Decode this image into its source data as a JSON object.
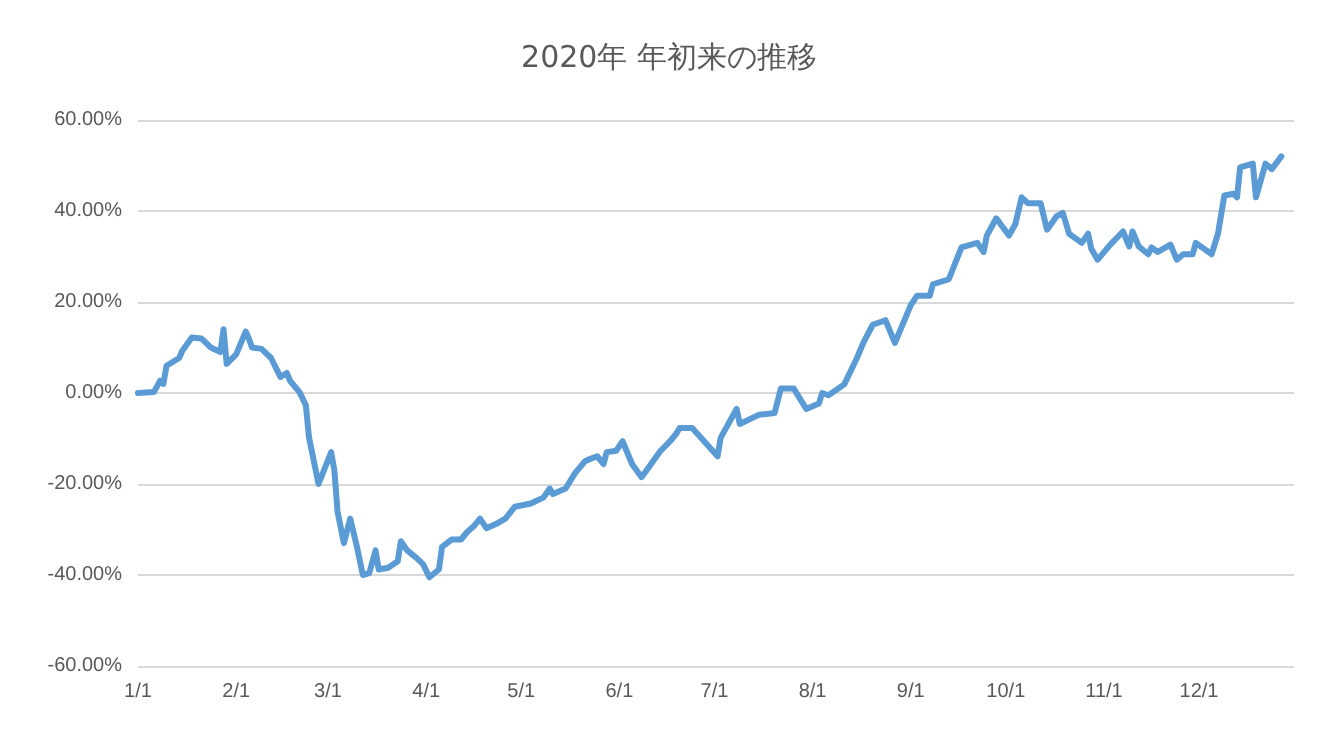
{
  "chart_data": {
    "type": "line",
    "title": "2020年 年初来の推移",
    "x": [
      "--01-01",
      "--01-06",
      "--01-08",
      "--01-09",
      "--01-10",
      "--01-14",
      "--01-15",
      "--01-18",
      "--01-21",
      "--01-24",
      "--01-27",
      "--01-28",
      "--01-29",
      "--02-01",
      "--02-04",
      "--02-05",
      "--02-06",
      "--02-09",
      "--02-12",
      "--02-15",
      "--02-17",
      "--02-18",
      "--02-21",
      "--02-23",
      "--02-24",
      "--02-27",
      "--03-02",
      "--03-03",
      "--03-04",
      "--03-06",
      "--03-08",
      "--03-10",
      "--03-12",
      "--03-14",
      "--03-16",
      "--03-17",
      "--03-20",
      "--03-23",
      "--03-24",
      "--03-26",
      "--03-29",
      "--03-31",
      "--04-02",
      "--04-05",
      "--04-06",
      "--04-09",
      "--04-12",
      "--04-14",
      "--04-16",
      "--04-18",
      "--04-20",
      "--04-23",
      "--04-26",
      "--04-29",
      "--05-04",
      "--05-08",
      "--05-10",
      "--05-11",
      "--05-15",
      "--05-18",
      "--05-21",
      "--05-22",
      "--05-25",
      "--05-27",
      "--05-28",
      "--05-31",
      "--06-02",
      "--06-05",
      "--06-08",
      "--06-11",
      "--06-14",
      "--06-17",
      "--06-19",
      "--06-20",
      "--06-24",
      "--07-02",
      "--07-03",
      "--07-08",
      "--07-09",
      "--07-15",
      "--07-20",
      "--07-22",
      "--07-26",
      "--07-30",
      "--08-03",
      "--08-04",
      "--08-06",
      "--08-11",
      "--08-15",
      "--08-17",
      "--08-20",
      "--08-24",
      "--08-27",
      "--09-01",
      "--09-03",
      "--09-07",
      "--09-08",
      "--09-13",
      "--09-17",
      "--09-22",
      "--09-24",
      "--09-25",
      "--09-28",
      "--10-02",
      "--10-04",
      "--10-06",
      "--10-08",
      "--10-12",
      "--10-14",
      "--10-17",
      "--10-19",
      "--10-21",
      "--10-25",
      "--10-27",
      "--10-28",
      "--10-30",
      "--11-03",
      "--11-07",
      "--11-09",
      "--11-10",
      "--11-12",
      "--11-15",
      "--11-16",
      "--11-18",
      "--11-22",
      "--11-24",
      "--11-26",
      "--11-29",
      "--11-30",
      "--12-05",
      "--12-07",
      "--12-09",
      "--12-12",
      "--12-13",
      "--12-14",
      "--12-18",
      "--12-19",
      "--12-22",
      "--12-24",
      "--12-27"
    ],
    "series": [
      {
        "color": "#5b9bd5",
        "values": [
          0,
          0.2,
          2.7,
          2,
          6,
          7.7,
          9.3,
          12.2,
          12,
          10,
          9,
          14,
          6.4,
          8.5,
          13.5,
          12,
          10,
          9.7,
          7.7,
          3.5,
          4.4,
          2.7,
          0.2,
          -2.7,
          -9.8,
          -20,
          -13,
          -17,
          -26,
          -33,
          -27.6,
          -33.4,
          -40,
          -39.6,
          -34.6,
          -38.8,
          -38.4,
          -37,
          -32.6,
          -34.6,
          -36.3,
          -37.6,
          -40.5,
          -38.8,
          -33.8,
          -32.2,
          -32.2,
          -30.5,
          -29.3,
          -27.6,
          -29.7,
          -28.8,
          -27.6,
          -25,
          -24.3,
          -23,
          -21,
          -22.2,
          -21,
          -17.6,
          -15.1,
          -14.7,
          -13.9,
          -15.6,
          -13,
          -12.7,
          -10.6,
          -15.6,
          -18.5,
          -15.6,
          -12.7,
          -10.6,
          -8.9,
          -7.7,
          -7.7,
          -13.9,
          -9.8,
          -3.5,
          -6.8,
          -4.8,
          -4.4,
          1,
          1,
          -3.5,
          -2.3,
          0,
          -0.5,
          1.9,
          7.7,
          11,
          15,
          16,
          11,
          19.3,
          21.4,
          21.4,
          23.9,
          25,
          32,
          33,
          31,
          34.6,
          38.4,
          34.6,
          37.1,
          43,
          41.7,
          41.7,
          35.9,
          38.8,
          39.6,
          35,
          33,
          35,
          31.7,
          29.3,
          32.6,
          35.5,
          32.2,
          35.5,
          32.2,
          30.5,
          32,
          31,
          32.6,
          29.3,
          30.5,
          30.5,
          33,
          30.5,
          35,
          43.4,
          43.8,
          43,
          49.6,
          50.4,
          43,
          50.4,
          49.2,
          52
        ]
      }
    ],
    "xlim": [
      "--01-01",
      "--12-31"
    ],
    "xticks": [
      {
        "value": "--01-01",
        "label": "1/1"
      },
      {
        "value": "--02-01",
        "label": "2/1"
      },
      {
        "value": "--03-01",
        "label": "3/1"
      },
      {
        "value": "--04-01",
        "label": "4/1"
      },
      {
        "value": "--05-01",
        "label": "5/1"
      },
      {
        "value": "--06-01",
        "label": "6/1"
      },
      {
        "value": "--07-01",
        "label": "7/1"
      },
      {
        "value": "--08-01",
        "label": "8/1"
      },
      {
        "value": "--09-01",
        "label": "9/1"
      },
      {
        "value": "--10-01",
        "label": "10/1"
      },
      {
        "value": "--11-01",
        "label": "11/1"
      },
      {
        "value": "--12-01",
        "label": "12/1"
      }
    ],
    "ylim": [
      -60,
      60
    ],
    "yticks": [
      {
        "value": -60,
        "label": "-60.00%"
      },
      {
        "value": -40,
        "label": "-40.00%"
      },
      {
        "value": -20,
        "label": "-20.00%"
      },
      {
        "value": 0,
        "label": "0.00%"
      },
      {
        "value": 20,
        "label": "20.00%"
      },
      {
        "value": 40,
        "label": "40.00%"
      },
      {
        "value": 60,
        "label": "60.00%"
      }
    ],
    "grid": "y",
    "marker": "none",
    "line_style": "solid"
  }
}
